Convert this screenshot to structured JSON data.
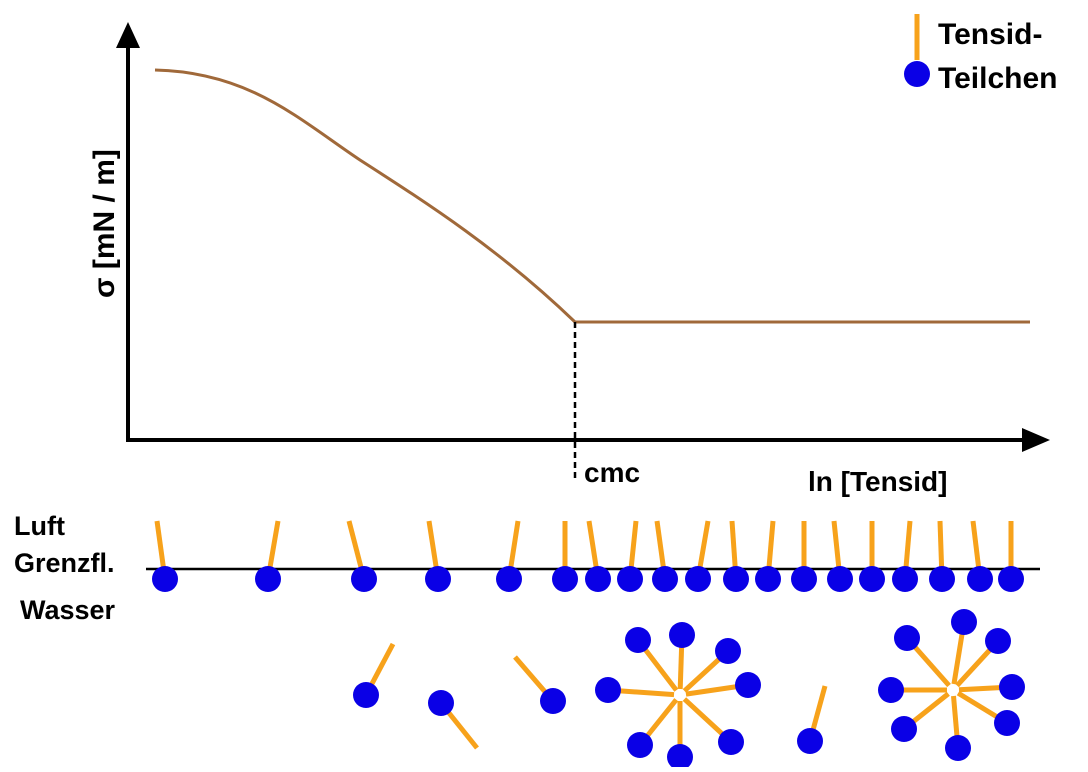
{
  "legend": {
    "line1": "Tensid-",
    "line2": "Teilchen"
  },
  "axes": {
    "ylabel": "σ   [mN / m]",
    "xlabel": "ln [Tensid]",
    "cmc_label": "cmc"
  },
  "layers": {
    "air": "Luft",
    "interface": "Grenzfl.",
    "water": "Wasser"
  },
  "colors": {
    "curve": "#a0693a",
    "tail": "#f7a21b",
    "head": "#0a00e6",
    "axis": "#000000"
  }
}
